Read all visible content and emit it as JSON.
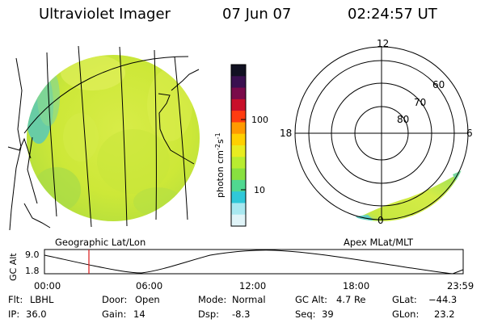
{
  "header": {
    "title": "Ultraviolet Imager",
    "date": "07 Jun 07",
    "time": "02:24:57 UT"
  },
  "colorbar": {
    "label": "photon cm",
    "label_sup1": "-2",
    "label_mid": "s",
    "label_sup2": "-1",
    "ticks": [
      "100",
      "10"
    ],
    "tick_values": [
      100,
      10
    ],
    "colors": [
      "#111122",
      "#3a1050",
      "#7a0a4a",
      "#c8102a",
      "#ff3c10",
      "#ff9a00",
      "#ffd000",
      "#e8ec20",
      "#b8ec30",
      "#88e040",
      "#50d890",
      "#30c8d8",
      "#a8e8f0",
      "#e0f4f8"
    ]
  },
  "map_labels": {
    "left": "Geographic Lat/Lon",
    "right": "Apex MLat/MLT"
  },
  "polar": {
    "mlt_labels": {
      "top": "12",
      "left": "18",
      "right": "6",
      "bottom": "0"
    },
    "lat_labels": [
      "60",
      "70",
      "80"
    ]
  },
  "altitude_plot": {
    "ylabel": "GC Alt",
    "yticks": [
      "9.0",
      "1.8"
    ],
    "xticks": [
      "00:00",
      "06:00",
      "12:00",
      "18:00",
      "23:59"
    ]
  },
  "info": {
    "row1": {
      "flt_label": "Flt:",
      "flt_value": "LBHL",
      "door_label": "Door:",
      "door_value": "Open",
      "mode_label": "Mode:",
      "mode_value": "Normal",
      "gcalt_label": "GC Alt:",
      "gcalt_value": "4.7 Re",
      "glat_label": "GLat:",
      "glat_value": "−44.3"
    },
    "row2": {
      "ip_label": "IP:",
      "ip_value": "36.0",
      "gain_label": "Gain:",
      "gain_value": "14",
      "dsp_label": "Dsp:",
      "dsp_value": "-8.3",
      "seq_label": "Seq:",
      "seq_value": "39",
      "glon_label": "GLon:",
      "glon_value": "23.2"
    }
  },
  "colors": {
    "disk_main": "#cfe83a",
    "disk_light": "#dcee55",
    "disk_green": "#a8dc48",
    "disk_cyan": "#58c8b8",
    "marker": "#d81818"
  }
}
